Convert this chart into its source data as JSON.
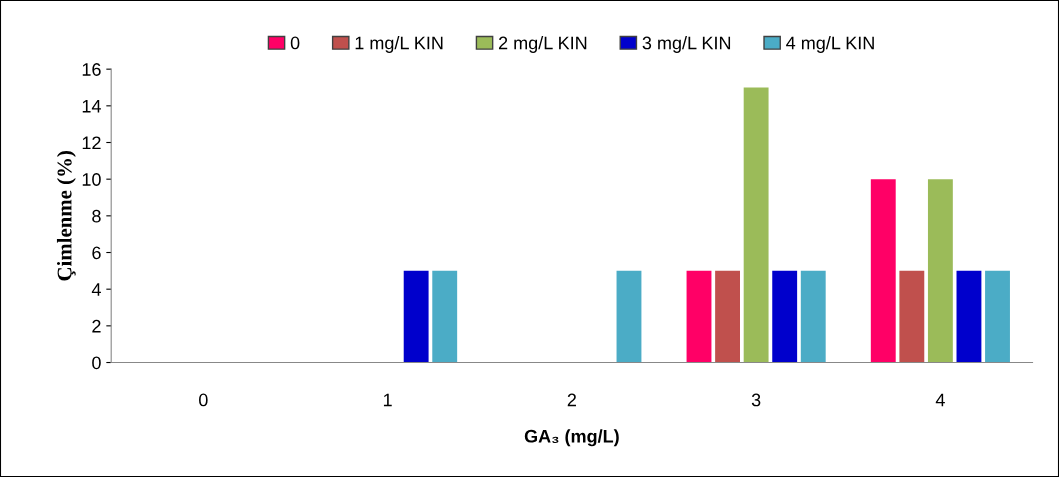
{
  "chart_data": {
    "type": "bar",
    "xlabel": "GA₃ (mg/L)",
    "ylabel": "Çimlenme (%)",
    "categories": [
      "0",
      "1",
      "2",
      "3",
      "4"
    ],
    "series": [
      {
        "name": "0",
        "color": "#ff0066",
        "values": [
          0,
          0,
          0,
          5,
          10
        ]
      },
      {
        "name": "1 mg/L KIN",
        "color": "#c0504d",
        "values": [
          0,
          0,
          0,
          5,
          5
        ]
      },
      {
        "name": "2 mg/L KIN",
        "color": "#9bbb59",
        "values": [
          0,
          0,
          0,
          15,
          10
        ]
      },
      {
        "name": "3 mg/L KIN",
        "color": "#0000cc",
        "values": [
          0,
          5,
          0,
          5,
          5
        ]
      },
      {
        "name": "4 mg/L KIN",
        "color": "#4bacc6",
        "values": [
          0,
          5,
          5,
          5,
          5
        ]
      }
    ],
    "ylim": [
      0,
      16
    ],
    "yticks": [
      0,
      2,
      4,
      6,
      8,
      10,
      12,
      14,
      16
    ],
    "grid": false,
    "legend": "top"
  }
}
